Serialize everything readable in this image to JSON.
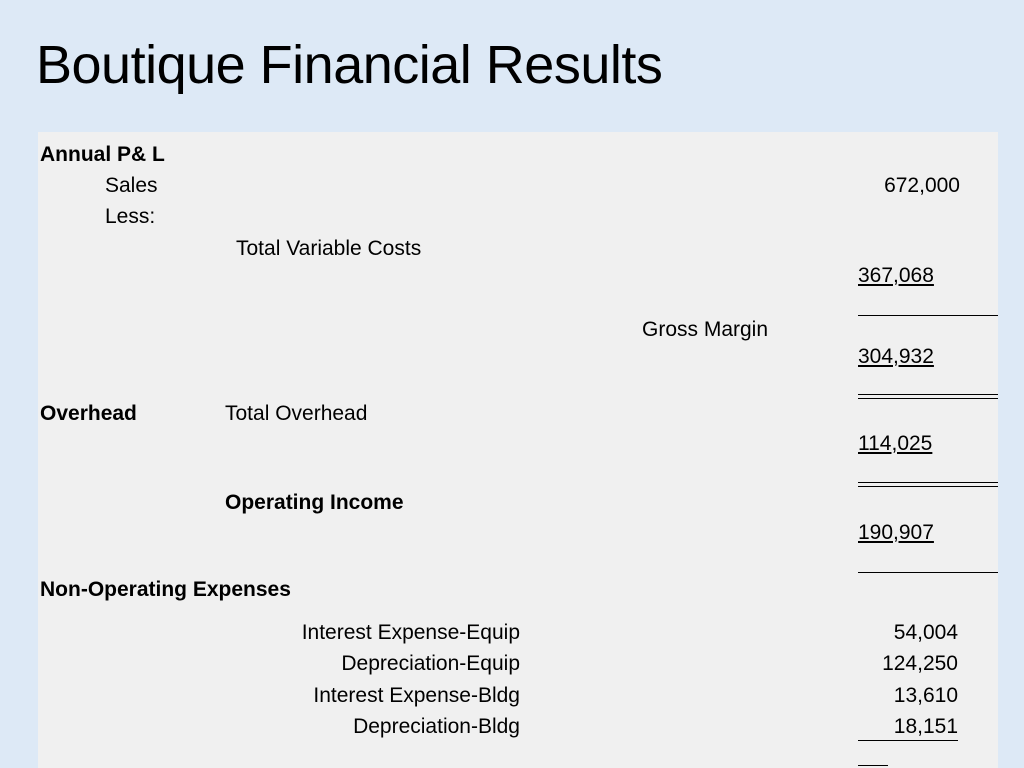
{
  "title": "Boutique Financial Results",
  "statement": {
    "heading": "Annual  P& L",
    "sales_label": "Sales",
    "sales_value": "672,000",
    "less_label": "Less:",
    "variable_costs_label": "Total Variable Costs",
    "variable_costs_value": "367,068",
    "gross_margin_label": "Gross Margin",
    "gross_margin_value": "304,932",
    "overhead_heading": "Overhead",
    "total_overhead_label": "Total Overhead",
    "total_overhead_value": "114,025",
    "operating_income_label": "Operating Income",
    "operating_income_value": "190,907",
    "non_operating_heading": "Non-Operating Expenses",
    "non_operating_items": [
      {
        "label": "Interest Expense-Equip",
        "value": "54,004"
      },
      {
        "label": "Depreciation-Equip",
        "value": "124,250"
      },
      {
        "label": "Interest Expense-Bldg",
        "value": "13,610"
      },
      {
        "label": "Depreciation-Bldg",
        "value": "18,151"
      }
    ]
  }
}
